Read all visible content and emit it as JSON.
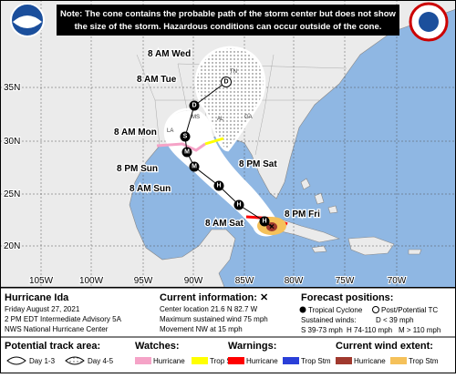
{
  "header": {
    "note_lines": [
      "Note: The cone contains the probable path of the storm center but does not show",
      "the size of the storm. Hazardous conditions can occur outside of the cone."
    ]
  },
  "map": {
    "forecast_labels": [
      "8 AM Wed",
      "8 AM Tue",
      "8 AM Mon",
      "8 PM Sun",
      "8 AM Sun",
      "8 PM Sat",
      "8 AM Sat",
      "8 PM Fri"
    ],
    "track_points": [
      "H",
      "H",
      "H",
      "M",
      "M",
      "S",
      "D",
      "D"
    ],
    "state_labels": [
      "TN",
      "AL",
      "MS",
      "LA",
      "GA"
    ],
    "lat_labels": [
      "35N",
      "30N",
      "25N",
      "20N"
    ],
    "lon_labels": [
      "105W",
      "100W",
      "95W",
      "90W",
      "85W",
      "80W",
      "75W",
      "70W"
    ]
  },
  "info": {
    "storm": {
      "name": "Hurricane Ida",
      "date": "Friday August 27, 2021",
      "advisory": "2 PM EDT Intermediate Advisory 5A",
      "issuer": "NWS National Hurricane Center"
    },
    "current": {
      "title": "Current information: ✕",
      "lines": [
        "Center location 21.6 N 82.7 W",
        "Maximum sustained wind 75 mph",
        "Movement NW at 15 mph"
      ]
    },
    "forecast": {
      "title": "Forecast positions:",
      "tropical_cyclone": "Tropical Cyclone",
      "post_tc": "Post/Potential TC",
      "winds_title": "Sustained winds:",
      "classes": [
        "D < 39 mph",
        "S 39-73 mph",
        "H 74-110 mph",
        "M > 110 mph"
      ]
    }
  },
  "legend": {
    "track_area": {
      "title": "Potential track area:",
      "items": [
        "Day 1-3",
        "Day 4-5"
      ]
    },
    "watches": {
      "title": "Watches:",
      "items": [
        "Hurricane",
        "Trop Stm"
      ]
    },
    "warnings": {
      "title": "Warnings:",
      "items": [
        "Hurricane",
        "Trop Stm"
      ]
    },
    "wind_extent": {
      "title": "Current wind extent:",
      "items": [
        "Hurricane",
        "Trop Stm"
      ]
    }
  }
}
